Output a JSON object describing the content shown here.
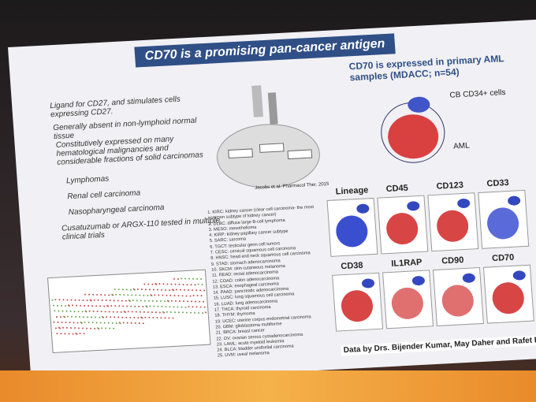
{
  "slide": {
    "title": "CD70 is a promising pan-cancer antigen",
    "bullets": [
      "Ligand for CD27, and stimulates cells expressing CD27.",
      "Generally absent in non-lymphoid normal tissue",
      "Constitutively expressed on many hematological malignancies and considerable fractions of solid carcinomas"
    ],
    "sub_bullets": [
      "Lymphomas",
      "Renal cell carcinoma",
      "Nasopharyngeal carcinoma"
    ],
    "trials": "Cusatuzumab or ARGX-110 tested in multiple clinical trials",
    "citation": "Jacobs et al. Pharmacol Ther. 2015",
    "cancers": [
      "1. KIRC: kidney cancer (clear cell carcinoma- the most common subtype of kidney cancer)",
      "2. DLBC: diffuse large B-cell lymphoma",
      "3. MESO: mesothelioma",
      "4. KIRP: kidney papillary cancer subtype",
      "5. SARC: sarcoma",
      "6. TGCT: testicular germ cell tumors",
      "7. CESC: cervical squamous cell carcinoma",
      "8. HNSC: head and neck squamous cell carcinoma",
      "9. STAD: stomach adenocarcinoma",
      "10. SKCM: skin cutaneous melanoma",
      "11. READ: rectal adenocarcinoma",
      "12. COAD: colon adenocarcinoma",
      "13. ESCA: esophageal carcinoma",
      "14. PAAD: pancreatic adenocarcinoma",
      "15. LUSC: lung squamous cell carcinoma",
      "16. LUAD: lung adenocarcinoma",
      "17. THCA: thyroid carcinoma",
      "18. THYM: thymoma",
      "19. UCEC: uterine corpus endometrial carcinoma",
      "20. GBM: glioblastoma multiforme",
      "21. BRCA: breast cancer",
      "22. OV: ovarian serous cystadenocarcinoma",
      "23. LAML: acute myeloid leukemia",
      "24. BLCA: bladder urothelial carcinoma",
      "25. UVM: uveal melanoma"
    ],
    "right_title": "CD70 is expressed in primary AML samples (MDACC; n=54)",
    "cb_label": "CB CD34+ cells",
    "aml_label": "AML",
    "panels": [
      "Lineage",
      "CD45",
      "CD123",
      "CD33",
      "CD38",
      "IL1RAP",
      "CD90",
      "CD70"
    ],
    "credit": "Data by Drs. Bijender Kumar, May Daher and Rafet Basar"
  }
}
